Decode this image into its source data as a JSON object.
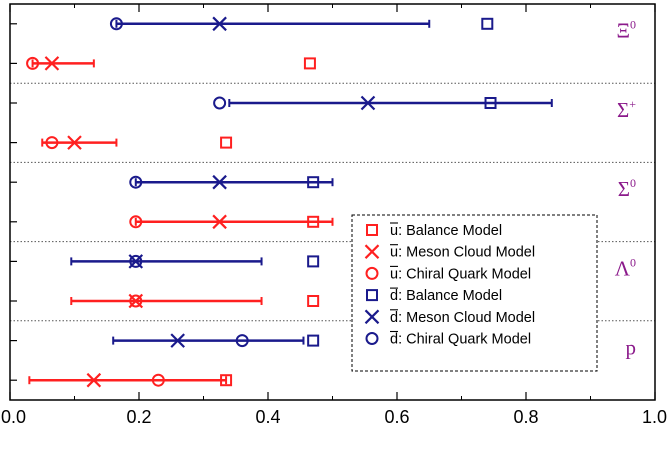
{
  "chart_data": {
    "type": "scatter",
    "xlim": [
      0.0,
      1.0
    ],
    "x_ticks": [
      "0.0",
      "0.2",
      "0.4",
      "0.6",
      "0.8",
      "1.0"
    ],
    "colors": {
      "u": "#ff2020",
      "d": "#1a1a8c",
      "group_label": "#8b1a8b",
      "separator": "#555555"
    },
    "groups": [
      {
        "label_base": "Ξ",
        "label_sup": "0",
        "rows": [
          {
            "quark": "d",
            "balance": 0.74,
            "meson_cloud": 0.325,
            "chiral_quark": 0.165,
            "error_bar": [
              0.165,
              0.65
            ]
          },
          {
            "quark": "u",
            "balance": 0.465,
            "meson_cloud": 0.065,
            "chiral_quark": 0.035,
            "error_bar": [
              0.035,
              0.13
            ]
          }
        ]
      },
      {
        "label_base": "Σ",
        "label_sup": "+",
        "rows": [
          {
            "quark": "d",
            "balance": 0.745,
            "meson_cloud": 0.555,
            "chiral_quark": 0.325,
            "error_bar": [
              0.34,
              0.84
            ]
          },
          {
            "quark": "u",
            "balance": 0.335,
            "meson_cloud": 0.1,
            "chiral_quark": 0.065,
            "error_bar": [
              0.05,
              0.165
            ]
          }
        ]
      },
      {
        "label_base": "Σ",
        "label_sup": "0",
        "rows": [
          {
            "quark": "d",
            "balance": 0.47,
            "meson_cloud": 0.325,
            "chiral_quark": 0.195,
            "error_bar": [
              0.195,
              0.5
            ]
          },
          {
            "quark": "u",
            "balance": 0.47,
            "meson_cloud": 0.325,
            "chiral_quark": 0.195,
            "error_bar": [
              0.195,
              0.5
            ]
          }
        ]
      },
      {
        "label_base": "Λ",
        "label_sup": "0",
        "rows": [
          {
            "quark": "d",
            "balance": 0.47,
            "meson_cloud": 0.195,
            "chiral_quark": 0.195,
            "error_bar": [
              0.095,
              0.39
            ]
          },
          {
            "quark": "u",
            "balance": 0.47,
            "meson_cloud": 0.195,
            "chiral_quark": 0.195,
            "error_bar": [
              0.095,
              0.39
            ]
          }
        ]
      },
      {
        "label_base": "p",
        "label_sup": "",
        "rows": [
          {
            "quark": "d",
            "balance": 0.47,
            "meson_cloud": 0.26,
            "chiral_quark": 0.36,
            "error_bar": [
              0.16,
              0.455
            ]
          },
          {
            "quark": "u",
            "balance": 0.335,
            "meson_cloud": 0.13,
            "chiral_quark": 0.23,
            "error_bar": [
              0.03,
              0.335
            ]
          }
        ]
      }
    ],
    "legend": {
      "placement": "center-right",
      "entries": [
        {
          "quark": "u",
          "marker": "square",
          "text": ": Balance Model"
        },
        {
          "quark": "u",
          "marker": "cross",
          "text": ": Meson Cloud Model"
        },
        {
          "quark": "u",
          "marker": "circle",
          "text": ": Chiral Quark Model"
        },
        {
          "quark": "d",
          "marker": "square",
          "text": ": Balance Model"
        },
        {
          "quark": "d",
          "marker": "cross",
          "text": ": Meson Cloud Model"
        },
        {
          "quark": "d",
          "marker": "circle",
          "text": ": Chiral Quark Model"
        }
      ]
    }
  }
}
